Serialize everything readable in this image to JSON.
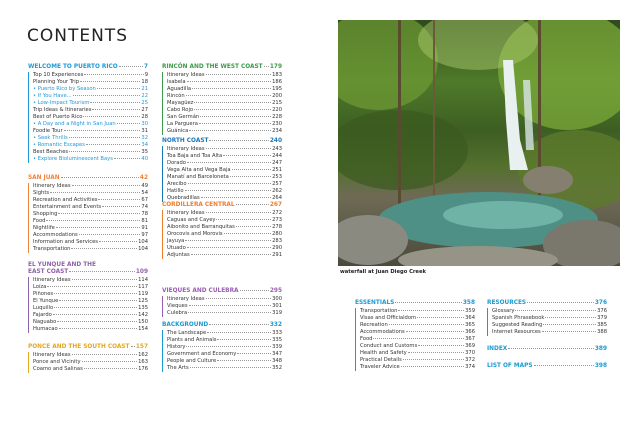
{
  "page_title": "CONTENTS",
  "photo": {
    "caption": "waterfall at Juan Diego Creek"
  },
  "sections": [
    {
      "id": "welcome",
      "title": "WELCOME TO PUERTO RICO",
      "page": "7",
      "color": "#1e9ad6",
      "items": [
        {
          "label": "Top 10 Experiences",
          "page": "9"
        },
        {
          "label": "Planning Your Trip",
          "page": "18"
        },
        {
          "label": "• Puerto Rico by Season",
          "page": "21",
          "sub": true
        },
        {
          "label": "• If You Have...",
          "page": "22",
          "sub": true
        },
        {
          "label": "• Low-Impact Tourism",
          "page": "25",
          "sub": true
        },
        {
          "label": "Trip Ideas & Itineraries",
          "page": "27"
        },
        {
          "label": "Best of Puerto Rico",
          "page": "28"
        },
        {
          "label": "• A Day and a Night in San Juan",
          "page": "30",
          "sub": true
        },
        {
          "label": "Foodie Tour",
          "page": "31"
        },
        {
          "label": "• Seek Thrills",
          "page": "32",
          "sub": true
        },
        {
          "label": "• Romantic Escapes",
          "page": "34",
          "sub": true
        },
        {
          "label": "Best Beaches",
          "page": "35"
        },
        {
          "label": "• Explore Bioluminescent Bays",
          "page": "40",
          "sub": true
        }
      ]
    },
    {
      "id": "san-juan",
      "title": "SAN JUAN",
      "page": "42",
      "color": "#f0833a",
      "items": [
        {
          "label": "Itinerary Ideas",
          "page": "49"
        },
        {
          "label": "Sights",
          "page": "54"
        },
        {
          "label": "Recreation and Activities",
          "page": "67"
        },
        {
          "label": "Entertainment and Events",
          "page": "74"
        },
        {
          "label": "Shopping",
          "page": "78"
        },
        {
          "label": "Food",
          "page": "81"
        },
        {
          "label": "Nightlife",
          "page": "91"
        },
        {
          "label": "Accommodations",
          "page": "97"
        },
        {
          "label": "Information and Services",
          "page": "104"
        },
        {
          "label": "Transportation",
          "page": "104"
        }
      ]
    },
    {
      "id": "el-yunque",
      "title": "EL YUNQUE AND THE",
      "title2": "EAST COAST",
      "page": "109",
      "color": "#8e62a8",
      "items": [
        {
          "label": "Itinerary Ideas",
          "page": "114"
        },
        {
          "label": "Loíza",
          "page": "117"
        },
        {
          "label": "Piñones",
          "page": "119"
        },
        {
          "label": "El Yunque",
          "page": "125"
        },
        {
          "label": "Luquillo",
          "page": "135"
        },
        {
          "label": "Fajardo",
          "page": "142"
        },
        {
          "label": "Naguabo",
          "page": "150"
        },
        {
          "label": "Humacao",
          "page": "154"
        }
      ]
    },
    {
      "id": "ponce",
      "title": "PONCE AND THE SOUTH COAST",
      "page": "157",
      "color": "#e2a81e",
      "items": [
        {
          "label": "Itinerary Ideas",
          "page": "162"
        },
        {
          "label": "Ponce and Vicinity",
          "page": "163"
        },
        {
          "label": "Coamo and Salinas",
          "page": "176"
        }
      ]
    },
    {
      "id": "rincon",
      "title": "RINCÓN AND THE WEST COAST",
      "page": "179",
      "color": "#3e9a4a",
      "items": [
        {
          "label": "Itinerary Ideas",
          "page": "183"
        },
        {
          "label": "Isabela",
          "page": "186"
        },
        {
          "label": "Aguadilla",
          "page": "195"
        },
        {
          "label": "Rincón",
          "page": "200"
        },
        {
          "label": "Mayagüez",
          "page": "215"
        },
        {
          "label": "Cabo Rojo",
          "page": "220"
        },
        {
          "label": "San Germán",
          "page": "228"
        },
        {
          "label": "La Parguera",
          "page": "230"
        },
        {
          "label": "Guánica",
          "page": "234"
        }
      ]
    },
    {
      "id": "north",
      "title": "NORTH COAST",
      "page": "240",
      "color": "#1b78b8",
      "items": [
        {
          "label": "Itinerary Ideas",
          "page": "243"
        },
        {
          "label": "Toa Baja and Toa Alta",
          "page": "244"
        },
        {
          "label": "Dorado",
          "page": "247"
        },
        {
          "label": "Vega Alta and Vega Baja",
          "page": "251"
        },
        {
          "label": "Manatí and Barceloneta",
          "page": "253"
        },
        {
          "label": "Arecibo",
          "page": "257"
        },
        {
          "label": "Hatillo",
          "page": "262"
        },
        {
          "label": "Quebradillas",
          "page": "264"
        }
      ]
    },
    {
      "id": "cordillera",
      "title": "CORDILLERA CENTRAL",
      "page": "267",
      "color": "#ef7d2e",
      "items": [
        {
          "label": "Itinerary Ideas",
          "page": "272"
        },
        {
          "label": "Caguas and Cayey",
          "page": "273"
        },
        {
          "label": "Aibonito and Barranquitas",
          "page": "278"
        },
        {
          "label": "Orocovis and Morovis",
          "page": "280"
        },
        {
          "label": "Jayuya",
          "page": "283"
        },
        {
          "label": "Utuado",
          "page": "290"
        },
        {
          "label": "Adjuntas",
          "page": "291"
        }
      ]
    },
    {
      "id": "vieques",
      "title": "VIEQUES AND CULEBRA",
      "page": "295",
      "color": "#9a5eb0",
      "items": [
        {
          "label": "Itinerary Ideas",
          "page": "300"
        },
        {
          "label": "Vieques",
          "page": "301"
        },
        {
          "label": "Culebra",
          "page": "319"
        }
      ]
    },
    {
      "id": "background",
      "title": "BACKGROUND",
      "page": "332",
      "color": "#1a9bd0",
      "items": [
        {
          "label": "The Landscape",
          "page": "333"
        },
        {
          "label": "Plants and Animals",
          "page": "335"
        },
        {
          "label": "History",
          "page": "339"
        },
        {
          "label": "Government and Economy",
          "page": "347"
        },
        {
          "label": "People and Culture",
          "page": "348"
        },
        {
          "label": "The Arts",
          "page": "352"
        }
      ]
    },
    {
      "id": "essentials",
      "title": "ESSENTIALS",
      "page": "358",
      "color": "#1a9bd0",
      "items": [
        {
          "label": "Transportation",
          "page": "359"
        },
        {
          "label": "Visas and Officialdom",
          "page": "364"
        },
        {
          "label": "Recreation",
          "page": "365"
        },
        {
          "label": "Accommodations",
          "page": "366"
        },
        {
          "label": "Food",
          "page": "367"
        },
        {
          "label": "Conduct and Customs",
          "page": "369"
        },
        {
          "label": "Health and Safety",
          "page": "370"
        },
        {
          "label": "Practical Details",
          "page": "372"
        },
        {
          "label": "Traveler Advice",
          "page": "374"
        }
      ]
    },
    {
      "id": "resources",
      "title": "RESOURCES",
      "page": "376",
      "color": "#1a9bd0",
      "items": [
        {
          "label": "Glossary",
          "page": "376"
        },
        {
          "label": "Spanish Phrasebook",
          "page": "379"
        },
        {
          "label": "Suggested Reading",
          "page": "385"
        },
        {
          "label": "Internet Resources",
          "page": "388"
        }
      ]
    },
    {
      "id": "index",
      "title": "INDEX",
      "page": "389",
      "color": "#1a9bd0",
      "items": []
    },
    {
      "id": "maps",
      "title": "LIST OF MAPS",
      "page": "398",
      "color": "#1a9bd0",
      "items": []
    }
  ]
}
